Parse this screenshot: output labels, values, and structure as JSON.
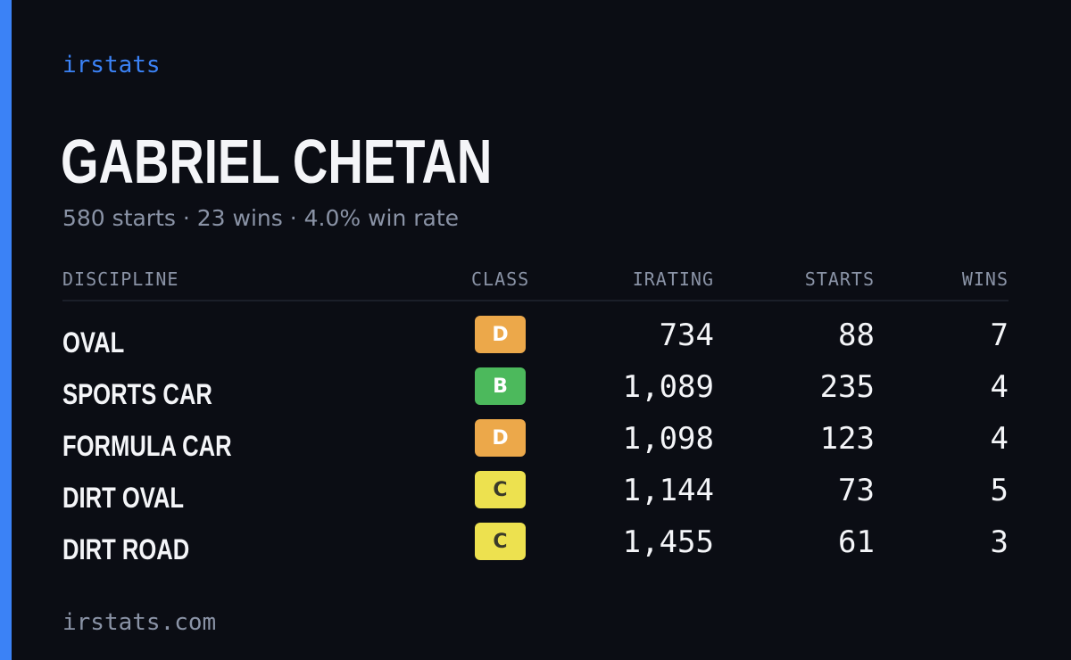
{
  "brand": "irstats",
  "driver": {
    "name": "GABRIEL CHETAN",
    "summary": "580 starts · 23 wins · 4.0% win rate"
  },
  "table": {
    "headers": {
      "discipline": "DISCIPLINE",
      "class": "CLASS",
      "irating": "IRATING",
      "starts": "STARTS",
      "wins": "WINS"
    },
    "rows": [
      {
        "discipline": "OVAL",
        "class": "D",
        "class_color": "#eca84a",
        "class_text_color": "#ffffff",
        "irating": "734",
        "starts": "88",
        "wins": "7"
      },
      {
        "discipline": "SPORTS CAR",
        "class": "B",
        "class_color": "#4cb95c",
        "class_text_color": "#ffffff",
        "irating": "1,089",
        "starts": "235",
        "wins": "4"
      },
      {
        "discipline": "FORMULA CAR",
        "class": "D",
        "class_color": "#eca84a",
        "class_text_color": "#ffffff",
        "irating": "1,098",
        "starts": "123",
        "wins": "4"
      },
      {
        "discipline": "DIRT OVAL",
        "class": "C",
        "class_color": "#ede14f",
        "class_text_color": "#3a3a2a",
        "irating": "1,144",
        "starts": "73",
        "wins": "5"
      },
      {
        "discipline": "DIRT ROAD",
        "class": "C",
        "class_color": "#ede14f",
        "class_text_color": "#3a3a2a",
        "irating": "1,455",
        "starts": "61",
        "wins": "3"
      }
    ]
  },
  "footer": "irstats.com",
  "colors": {
    "accent": "#3b82f6",
    "background": "#0b0d14",
    "muted": "#8a93a6",
    "text": "#f4f5f8"
  }
}
